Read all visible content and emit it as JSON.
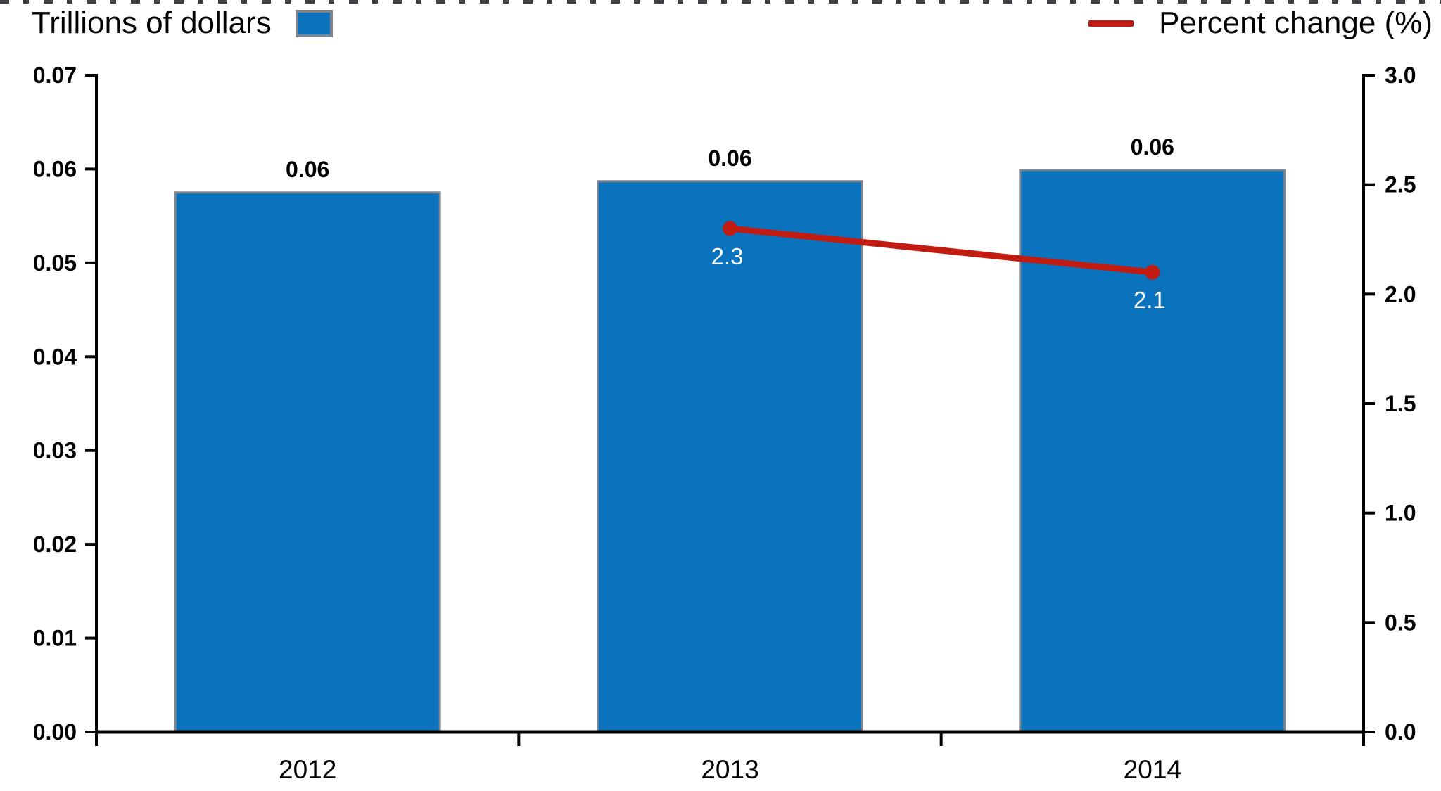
{
  "chart_data": {
    "type": "bar",
    "subtype": "combo-bar-line-dual-axis",
    "title": "",
    "categories": [
      "2012",
      "2013",
      "2014"
    ],
    "series": [
      {
        "name": "Trillions of dollars",
        "type": "bar",
        "axis": "left",
        "color": "#0B72BE",
        "border_color": "#7F858B",
        "values": [
          0.0575,
          0.0587,
          0.0599
        ],
        "data_labels": [
          "0.06",
          "0.06",
          "0.06"
        ],
        "data_label_color": "#000000"
      },
      {
        "name": "Percent change (%)",
        "type": "line",
        "axis": "right",
        "color": "#C21B12",
        "values": [
          null,
          2.3,
          2.1
        ],
        "data_labels": [
          null,
          "2.3",
          "2.1"
        ],
        "data_label_color": "#FFFFFF"
      }
    ],
    "left_axis": {
      "min": 0,
      "max": 0.07,
      "step": 0.01,
      "tick_labels": [
        "0.00",
        "0.01",
        "0.02",
        "0.03",
        "0.04",
        "0.05",
        "0.06",
        "0.07"
      ]
    },
    "right_axis": {
      "min": 0,
      "max": 3.0,
      "step": 0.5,
      "tick_labels": [
        "0.0",
        "0.5",
        "1.0",
        "1.5",
        "2.0",
        "2.5",
        "3.0"
      ]
    },
    "x_axis": {
      "tick_labels": [
        "2012",
        "2013",
        "2014"
      ]
    },
    "grid": false,
    "legend_position": "top",
    "axis_color": "#000000",
    "background_color": "#FFFFFF"
  }
}
